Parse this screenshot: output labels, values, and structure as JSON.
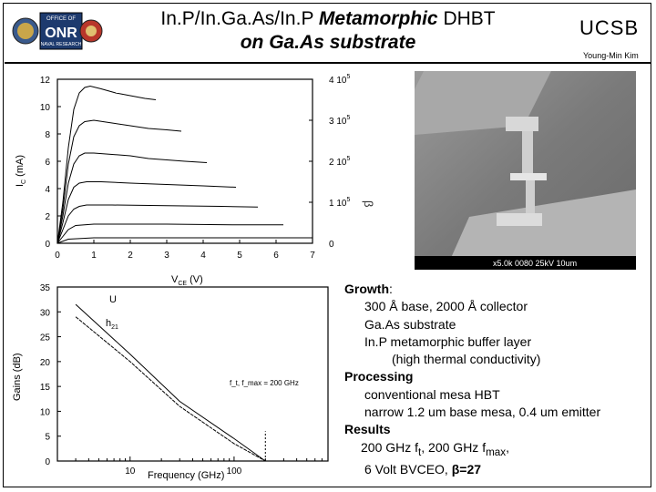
{
  "header": {
    "title_line1_prefix": "In.P/In.Ga.As/In.P ",
    "title_line1_italic": "Metamorphic",
    "title_line1_suffix": " DHBT",
    "title_line2": "on Ga.As substrate",
    "institution": "UCSB",
    "author": "Young-Min Kim"
  },
  "colors": {
    "text": "#000000",
    "background": "#ffffff",
    "sem_gray": "#8a8a8a"
  },
  "top_chart": {
    "xlabel_main": "V",
    "xlabel_sub": "CE",
    "xlabel_unit": " (V)",
    "ylabel_main": "I",
    "ylabel_sub": "C",
    "ylabel_unit": " (mA)",
    "x_ticks": [
      "0",
      "1",
      "2",
      "3",
      "4",
      "5",
      "6",
      "7"
    ],
    "y_ticks": [
      "0",
      "2",
      "4",
      "6",
      "8",
      "10",
      "12"
    ],
    "right_ticks": [
      "0",
      "1 10",
      "2 10",
      "3 10",
      "4 10"
    ],
    "right_tick_exp": "5"
  },
  "bottom_chart": {
    "xlabel": "Frequency (GHz)",
    "ylabel": "Gains (dB)",
    "x_ticks": [
      "10",
      "100"
    ],
    "y_ticks": [
      "0",
      "5",
      "10",
      "15",
      "20",
      "25",
      "30",
      "35"
    ],
    "label_u": "U",
    "label_h21_main": "h",
    "label_h21_sub": "21",
    "annotation": "f_t, f_max = 200 GHz"
  },
  "sem_image": {
    "caption": "x5.0k  0080  25kV  10um"
  },
  "notes": {
    "growth_head": "Growth",
    "growth_colon": ":",
    "growth_1": "300 Å base, 2000 Å collector",
    "growth_2": "Ga.As substrate",
    "growth_3": "In.P metamorphic buffer layer",
    "growth_4": "(high thermal conductivity)",
    "processing_head": "Processing",
    "processing_1": "conventional mesa HBT",
    "processing_2": "narrow  1.2 um base mesa, 0.4 um emitter",
    "results_head": "Results",
    "results_1_a": "200 GHz f",
    "results_1_sub_a": "t",
    "results_1_b": ", 200 GHz f",
    "results_1_sub_b": "max",
    "results_1_c": ",",
    "results_2_a": "6 Volt BVCEO, ",
    "results_2_beta": "β=27"
  },
  "chart_data": [
    {
      "type": "line",
      "title": "",
      "xlabel": "VCE (V)",
      "ylabel": "IC (mA)",
      "xlim": [
        0,
        7
      ],
      "ylim": [
        0,
        12
      ],
      "grid": false,
      "series": [
        {
          "x": [
            0,
            0.15,
            0.3,
            0.45,
            0.6,
            0.75,
            0.9,
            1.2,
            1.6,
            2.0,
            2.4,
            2.7
          ],
          "y": [
            0,
            3,
            7,
            9.8,
            11,
            11.4,
            11.5,
            11.3,
            11.0,
            10.8,
            10.6,
            10.5
          ]
        },
        {
          "x": [
            0,
            0.15,
            0.3,
            0.45,
            0.6,
            0.75,
            1.0,
            1.5,
            2.0,
            2.5,
            3.0,
            3.4
          ],
          "y": [
            0,
            2.5,
            5.8,
            7.8,
            8.6,
            8.9,
            9.0,
            8.8,
            8.6,
            8.4,
            8.3,
            8.2
          ]
        },
        {
          "x": [
            0,
            0.15,
            0.3,
            0.45,
            0.6,
            0.75,
            1.0,
            1.5,
            2.0,
            2.5,
            3.0,
            3.5,
            4.1
          ],
          "y": [
            0,
            2.0,
            4.4,
            5.8,
            6.4,
            6.6,
            6.6,
            6.5,
            6.4,
            6.2,
            6.1,
            6.0,
            5.9
          ]
        },
        {
          "x": [
            0,
            0.15,
            0.3,
            0.45,
            0.6,
            0.8,
            1.2,
            2.0,
            3.0,
            4.0,
            4.9
          ],
          "y": [
            0,
            1.5,
            3.2,
            4.1,
            4.4,
            4.5,
            4.5,
            4.4,
            4.3,
            4.2,
            4.1
          ]
        },
        {
          "x": [
            0,
            0.15,
            0.3,
            0.45,
            0.6,
            0.8,
            1.5,
            3.0,
            4.5,
            5.5
          ],
          "y": [
            0,
            1.0,
            2.0,
            2.5,
            2.7,
            2.8,
            2.8,
            2.75,
            2.7,
            2.65
          ]
        },
        {
          "x": [
            0,
            0.15,
            0.3,
            0.5,
            1.0,
            3.0,
            5.0,
            6.2
          ],
          "y": [
            0,
            0.5,
            1.0,
            1.3,
            1.4,
            1.4,
            1.35,
            1.35
          ]
        },
        {
          "x": [
            0,
            0.3,
            1.0,
            4.0,
            7.0
          ],
          "y": [
            0,
            0.3,
            0.4,
            0.4,
            0.4
          ]
        }
      ]
    },
    {
      "type": "line",
      "title": "",
      "xlabel": "Frequency (GHz)",
      "ylabel": "Gains (dB)",
      "x_scale": "log",
      "xlim": [
        2,
        800
      ],
      "ylim": [
        0,
        35
      ],
      "grid": false,
      "series": [
        {
          "name": "U",
          "x": [
            3,
            10,
            30,
            100,
            200
          ],
          "y": [
            31.5,
            21.5,
            12,
            4.5,
            0
          ]
        },
        {
          "name": "h21",
          "x": [
            3,
            10,
            30,
            100,
            200
          ],
          "y": [
            29,
            20,
            11,
            3.5,
            0
          ]
        }
      ]
    }
  ]
}
